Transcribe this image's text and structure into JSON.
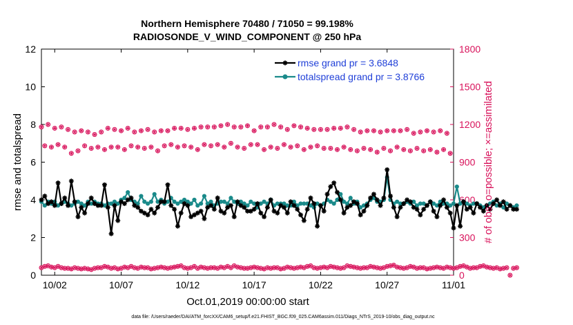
{
  "chart_data": {
    "type": "line",
    "title": "Northern Hemisphere 70480 / 71050 = 99.198%",
    "subtitle": "RADIOSONDE_V_WIND_COMPONENT @ 250 hPa",
    "xlabel": "Oct.01,2019 00:00:00 start",
    "ylabel": "rmse and totalspread",
    "y2label": "# of obs: o=possible; ×=assimilated",
    "footnote": "data file: /Users/raeder/DAI/ATM_forcXX/CAM6_setup/f.e21.FHIST_BGC.f09_025.CAM6assim.011/Diags_NTrS_2019-10/obs_diag_output.nc",
    "xlim": [
      1.0,
      32.0
    ],
    "ylim": [
      0,
      12
    ],
    "y2lim": [
      0,
      1800
    ],
    "xticks": [
      {
        "x": 2,
        "label": "10/02"
      },
      {
        "x": 7,
        "label": "10/07"
      },
      {
        "x": 12,
        "label": "10/12"
      },
      {
        "x": 17,
        "label": "10/17"
      },
      {
        "x": 22,
        "label": "10/22"
      },
      {
        "x": 27,
        "label": "10/27"
      },
      {
        "x": 32,
        "label": "11/01"
      }
    ],
    "yticks": [
      0,
      2,
      4,
      6,
      8,
      10,
      12
    ],
    "y2ticks": [
      0,
      300,
      600,
      900,
      1200,
      1500,
      1800
    ],
    "legend_position": "top-right",
    "x_start": 1.0,
    "x_step": 0.25,
    "series": [
      {
        "name": "rmse grand pr = 3.6848",
        "color": "#000000",
        "marker": "asterisk",
        "values": [
          4.0,
          4.2,
          3.8,
          3.9,
          3.7,
          4.9,
          3.8,
          4.1,
          3.7,
          5.0,
          3.9,
          3.1,
          3.6,
          3.3,
          3.8,
          4.1,
          3.8,
          3.7,
          3.7,
          4.8,
          3.6,
          2.2,
          3.7,
          2.9,
          3.9,
          3.8,
          4.0,
          4.1,
          3.7,
          3.6,
          3.4,
          3.3,
          3.2,
          3.5,
          3.3,
          3.6,
          3.9,
          3.9,
          4.8,
          3.7,
          3.5,
          2.6,
          3.3,
          3.8,
          3.7,
          3.1,
          3.2,
          3.3,
          3.4,
          3.0,
          3.6,
          3.7,
          3.5,
          4.1,
          3.4,
          3.3,
          3.6,
          3.7,
          3.1,
          3.9,
          3.7,
          3.6,
          3.4,
          3.4,
          3.5,
          3.8,
          3.3,
          3.1,
          3.6,
          4.0,
          3.4,
          3.3,
          3.7,
          3.6,
          3.3,
          3.9,
          3.7,
          3.5,
          3.2,
          2.9,
          3.5,
          4.1,
          3.8,
          2.6,
          3.7,
          3.4,
          4.3,
          4.7,
          4.9,
          4.4,
          4.0,
          3.3,
          3.6,
          3.7,
          3.9,
          3.8,
          3.2,
          3.4,
          3.7,
          4.1,
          4.3,
          4.0,
          3.7,
          4.1,
          5.6,
          4.2,
          3.6,
          3.1,
          3.6,
          3.8,
          4.0,
          3.9,
          3.6,
          3.5,
          3.2,
          3.5,
          3.7,
          3.9,
          3.4,
          3.1,
          3.7,
          4.0,
          3.6,
          3.3,
          2.5,
          3.7,
          2.6,
          3.9,
          3.5,
          3.6,
          3.3,
          3.8,
          3.6,
          3.4,
          3.7,
          3.5,
          3.8,
          4.0,
          3.7,
          3.9,
          3.5,
          3.7,
          3.5,
          3.5
        ]
      },
      {
        "name": "totalspread grand pr = 3.8766",
        "color": "#1a8a8a",
        "marker": "circle",
        "values": [
          3.9,
          3.7,
          3.9,
          3.8,
          3.9,
          3.7,
          3.8,
          3.9,
          3.8,
          3.7,
          3.8,
          3.9,
          3.8,
          3.7,
          3.9,
          3.8,
          3.9,
          3.8,
          3.8,
          3.7,
          3.8,
          3.8,
          3.9,
          3.8,
          4.0,
          4.1,
          4.4,
          4.0,
          3.9,
          3.8,
          4.2,
          3.9,
          3.8,
          3.9,
          4.3,
          3.9,
          4.0,
          3.8,
          3.9,
          4.1,
          3.9,
          3.8,
          3.9,
          4.0,
          3.9,
          3.8,
          4.0,
          3.7,
          3.8,
          4.2,
          3.8,
          3.9,
          3.7,
          3.8,
          3.9,
          3.9,
          3.8,
          4.1,
          3.9,
          3.8,
          3.9,
          3.8,
          3.7,
          3.9,
          3.8,
          3.6,
          3.8,
          3.9,
          3.8,
          4.0,
          3.7,
          3.8,
          3.8,
          3.8,
          3.7,
          3.7,
          3.9,
          3.7,
          3.8,
          3.8,
          3.8,
          3.7,
          3.6,
          3.8,
          3.7,
          3.8,
          4.0,
          3.9,
          3.8,
          4.0,
          4.3,
          3.9,
          3.8,
          4.1,
          3.8,
          3.9,
          3.6,
          3.7,
          3.8,
          4.0,
          4.1,
          3.9,
          3.9,
          4.0,
          5.2,
          4.0,
          3.8,
          3.9,
          3.8,
          3.8,
          3.9,
          3.8,
          3.9,
          3.7,
          3.8,
          3.8,
          3.7,
          3.9,
          3.8,
          3.7,
          3.9,
          3.8,
          3.8,
          3.7,
          3.8,
          4.7,
          3.8,
          3.9,
          3.8,
          3.7,
          3.8,
          3.8,
          3.7,
          3.6,
          3.7,
          3.8,
          3.9,
          3.7,
          3.8,
          3.6,
          3.8,
          3.7,
          3.6,
          3.7
        ]
      },
      {
        "name": "",
        "axis": "right",
        "color": "#d8115a",
        "marker": "circle-cross",
        "x_start": 1.0,
        "x_step": 0.5,
        "role": "possible observations at 00Z",
        "values": [
          1180,
          1200,
          1170,
          1180,
          1160,
          1140,
          1150,
          1140,
          1120,
          1140,
          1170,
          1160,
          1150,
          1170,
          1140,
          1150,
          1160,
          1140,
          1150,
          1150,
          1170,
          1170,
          1160,
          1170,
          1180,
          1180,
          1180,
          1190,
          1200,
          1180,
          1180,
          1190,
          1150,
          1180,
          1180,
          1200,
          1180,
          1160,
          1190,
          1180,
          1170,
          1160,
          1160,
          1160,
          1170,
          1170,
          1180,
          1160,
          1140,
          1150,
          1150,
          1140,
          1150,
          1150,
          1150,
          1160,
          1130,
          1140,
          1150,
          1140,
          1150,
          1130
        ]
      },
      {
        "name": "",
        "axis": "right",
        "color": "#d8115a",
        "marker": "circle-cross",
        "x_start": 1.25,
        "x_step": 0.5,
        "role": "possible observations at 12Z",
        "values": [
          1030,
          1020,
          1040,
          1020,
          970,
          990,
          1030,
          1010,
          1020,
          1000,
          1020,
          1020,
          1000,
          1030,
          1020,
          1010,
          1020,
          990,
          1030,
          1040,
          1020,
          1030,
          1020,
          1000,
          1040,
          1030,
          1040,
          1020,
          1050,
          1020,
          1010,
          1040,
          1040,
          1000,
          1020,
          1010,
          1040,
          1020,
          1030,
          1000,
          1020,
          1030,
          1010,
          1010,
          1000,
          1020,
          1000,
          990,
          1010,
          1000,
          980,
          1010,
          990,
          1020,
          1000,
          990,
          1010,
          990,
          1000,
          980,
          1000,
          970
        ]
      },
      {
        "name": "",
        "axis": "right",
        "color": "#d8115a",
        "marker": "circle-cross",
        "x_start": 1.0,
        "x_step": 0.25,
        "role": "observations near zero",
        "values": [
          60,
          70,
          75,
          65,
          60,
          70,
          60,
          55,
          55,
          50,
          60,
          55,
          50,
          55,
          50,
          45,
          55,
          60,
          60,
          70,
          65,
          55,
          60,
          50,
          55,
          65,
          60,
          70,
          60,
          55,
          65,
          60,
          60,
          50,
          55,
          60,
          65,
          60,
          55,
          60,
          65,
          70,
          75,
          60,
          55,
          60,
          70,
          55,
          65,
          60,
          55,
          60,
          60,
          55,
          65,
          60,
          70,
          60,
          75,
          65,
          60,
          55,
          55,
          60,
          65,
          60,
          55,
          50,
          60,
          55,
          60,
          60,
          50,
          55,
          65,
          60,
          55,
          60,
          65,
          60,
          70,
          75,
          60,
          55,
          60,
          65,
          60,
          70,
          65,
          60,
          55,
          60,
          75,
          70,
          65,
          60,
          55,
          60,
          60,
          70,
          65,
          60,
          55,
          60,
          70,
          75,
          80,
          65,
          60,
          55,
          60,
          70,
          65,
          55,
          60,
          60,
          50,
          55,
          60,
          65,
          60,
          55,
          65,
          60,
          55,
          60,
          70,
          75,
          65,
          55,
          60,
          60,
          70,
          75,
          65,
          60,
          55,
          60,
          50,
          55,
          60,
          0,
          55,
          60
        ]
      }
    ]
  }
}
